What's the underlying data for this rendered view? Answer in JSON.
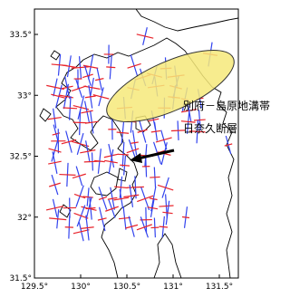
{
  "map": {
    "x_axis": {
      "ticks": [
        "129.5°",
        "130°",
        "130.5°",
        "131°",
        "131.5°"
      ]
    },
    "y_axis": {
      "ticks": [
        "33.5°",
        "33°",
        "32.5°",
        "32°",
        "31.5°"
      ]
    },
    "annotations": [
      "別府－島原地溝帯",
      "日奈久断層"
    ]
  }
}
